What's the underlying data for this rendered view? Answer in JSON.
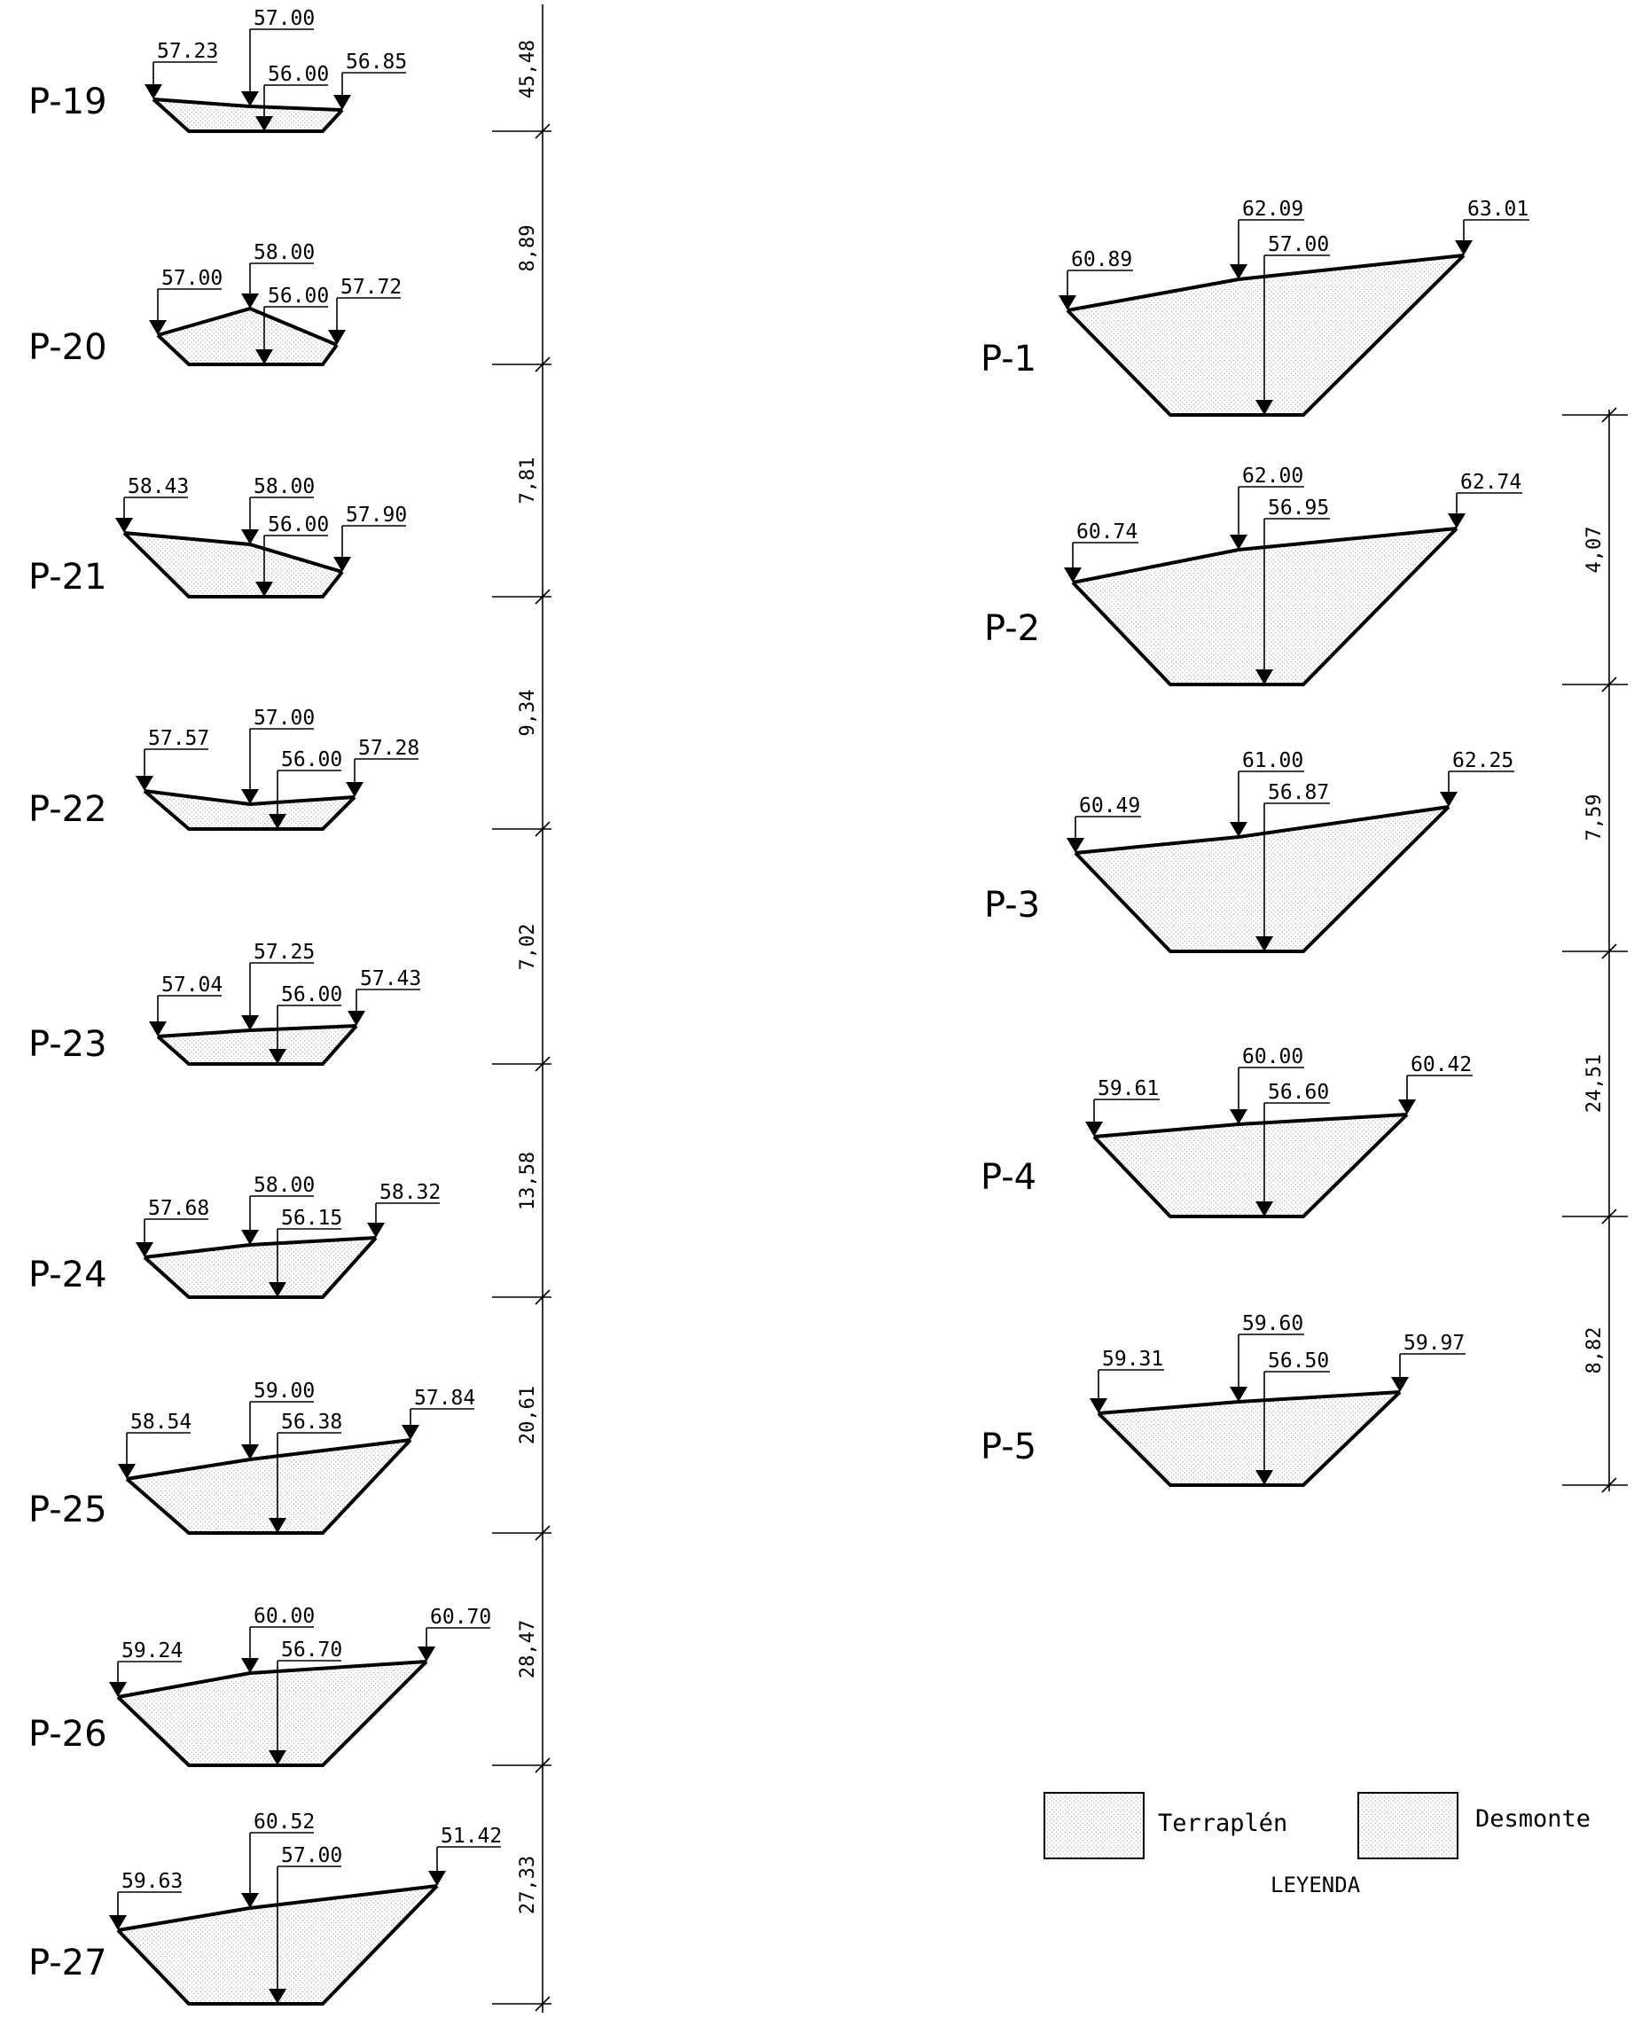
{
  "left_sections": [
    {
      "name": "P-19",
      "left": "57.23",
      "center": "57.00",
      "right": "56.85",
      "base": "56.00"
    },
    {
      "name": "P-20",
      "left": "57.00",
      "center": "58.00",
      "right": "57.72",
      "base": "56.00"
    },
    {
      "name": "P-21",
      "left": "58.43",
      "center": "58.00",
      "right": "57.90",
      "base": "56.00"
    },
    {
      "name": "P-22",
      "left": "57.57",
      "center": "57.00",
      "right": "57.28",
      "base": "56.00"
    },
    {
      "name": "P-23",
      "left": "57.04",
      "center": "57.25",
      "right": "57.43",
      "base": "56.00"
    },
    {
      "name": "P-24",
      "left": "57.68",
      "center": "58.00",
      "right": "58.32",
      "base": "56.15"
    },
    {
      "name": "P-25",
      "left": "58.54",
      "center": "59.00",
      "right": "57.84",
      "base": "56.38"
    },
    {
      "name": "P-26",
      "left": "59.24",
      "center": "60.00",
      "right": "60.70",
      "base": "56.70"
    },
    {
      "name": "P-27",
      "left": "59.63",
      "center": "60.52",
      "right": "51.42",
      "base": "57.00"
    }
  ],
  "left_distances": [
    "45,48",
    "8,89",
    "7,81",
    "9,34",
    "7,02",
    "13,58",
    "20,61",
    "28,47",
    "27,33"
  ],
  "right_sections": [
    {
      "name": "P-1",
      "left": "60.89",
      "center": "62.09",
      "right": "63.01",
      "base": "57.00"
    },
    {
      "name": "P-2",
      "left": "60.74",
      "center": "62.00",
      "right": "62.74",
      "base": "56.95"
    },
    {
      "name": "P-3",
      "left": "60.49",
      "center": "61.00",
      "right": "62.25",
      "base": "56.87"
    },
    {
      "name": "P-4",
      "left": "59.61",
      "center": "60.00",
      "right": "60.42",
      "base": "56.60"
    },
    {
      "name": "P-5",
      "left": "59.31",
      "center": "59.60",
      "right": "59.97",
      "base": "56.50"
    }
  ],
  "right_distances": [
    "4,07",
    "7,59",
    "24,51",
    "8,82"
  ],
  "legend": {
    "fill_label": "Terraplén",
    "cut_label": "Desmonte",
    "title": "LEYENDA"
  }
}
